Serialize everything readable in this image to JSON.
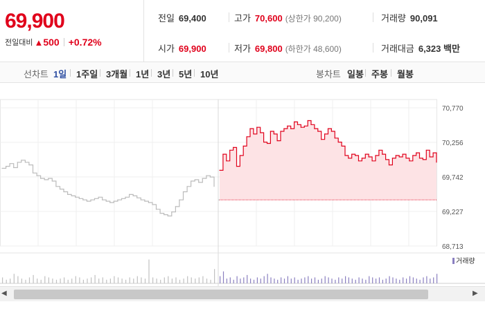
{
  "quote": {
    "price": "69,900",
    "change_label": "전일대비",
    "change_arrow": "▲",
    "change_amount": "500",
    "change_rate": "+0.72%",
    "prev_close": {
      "label": "전일",
      "value": "69,400"
    },
    "high": {
      "label": "고가",
      "value": "70,600",
      "sub": "(상한가 90,200)"
    },
    "volume": {
      "label": "거래량",
      "value": "90,091"
    },
    "open": {
      "label": "시가",
      "value": "69,900"
    },
    "low": {
      "label": "저가",
      "value": "69,800",
      "sub": "(하한가 48,600)"
    },
    "trade_value": {
      "label": "거래대금",
      "value": "6,323 백만"
    }
  },
  "line_tabs": {
    "title": "선차트",
    "items": [
      "1일",
      "1주일",
      "3개월",
      "1년",
      "3년",
      "5년",
      "10년"
    ],
    "active": "1일"
  },
  "candle_tabs": {
    "title": "봉차트",
    "items": [
      "일봉",
      "주봉",
      "월봉"
    ]
  },
  "colors": {
    "up": "#e0001b",
    "prev_line": "#bbbbbb",
    "fill": "#fde3e5",
    "volume_prev": "#c0c0c0",
    "volume_today": "#8a7fc0"
  },
  "scroll_icons": {
    "left": "◀",
    "right": "▶"
  },
  "chart_data": {
    "type": "line",
    "y_ticks": [
      "70,770",
      "70,256",
      "69,742",
      "69,227",
      "68,713"
    ],
    "ylim": [
      68713,
      70770
    ],
    "reference_price": 69400,
    "volume_legend": "거래량",
    "series": [
      {
        "values": [
          69870,
          69900,
          69940,
          69880,
          69960,
          69990,
          69960,
          69920,
          69800,
          69760,
          69720,
          69700,
          69720,
          69680,
          69600,
          69560,
          69520,
          69480,
          69460,
          69440,
          69420,
          69400,
          69380,
          69400,
          69420,
          69440,
          69400,
          69380,
          69360,
          69380,
          69400,
          69420,
          69440,
          69480,
          69460,
          69430,
          69400,
          69380,
          69360,
          69330,
          69260,
          69200,
          69180,
          69160,
          69220,
          69300,
          69400,
          69520,
          69600,
          69680,
          69700,
          69660,
          69720,
          69760,
          69740,
          69600
        ]
      },
      {
        "values": [
          69840,
          70080,
          69980,
          70140,
          70180,
          69900,
          70060,
          70200,
          70340,
          70460,
          70380,
          70480,
          70400,
          70260,
          70240,
          70420,
          70380,
          70280,
          70420,
          70460,
          70500,
          70460,
          70560,
          70520,
          70480,
          70500,
          70580,
          70520,
          70460,
          70420,
          70300,
          70380,
          70460,
          70420,
          70320,
          70260,
          70200,
          70060,
          70020,
          70080,
          70060,
          69980,
          70020,
          70080,
          70040,
          69980,
          70060,
          70140,
          70080,
          70000,
          69920,
          70020,
          70060,
          70040,
          70080,
          70020,
          69980,
          70060,
          70100,
          70020,
          70000,
          70140,
          70040,
          70100,
          69960
        ]
      }
    ],
    "volume": [
      [
        5,
        3,
        4,
        8,
        6,
        4,
        3,
        5,
        7,
        4,
        3,
        6,
        5,
        4,
        3,
        4,
        5,
        3,
        4,
        6,
        5,
        3,
        4,
        5,
        7,
        4,
        5,
        3,
        4,
        6,
        5,
        4,
        3,
        5,
        4,
        6,
        5,
        4,
        20,
        5,
        4,
        3,
        5,
        6,
        4,
        5,
        3,
        4,
        6,
        5,
        4,
        5,
        6,
        4,
        3,
        12
      ],
      [
        6,
        10,
        4,
        5,
        3,
        6,
        4,
        5,
        7,
        4,
        3,
        5,
        4,
        6,
        8,
        5,
        4,
        3,
        5,
        4,
        6,
        4,
        5,
        3,
        4,
        5,
        6,
        4,
        5,
        3,
        4,
        6,
        5,
        4,
        3,
        5,
        4,
        6,
        5,
        4,
        3,
        5,
        4,
        3,
        6,
        5,
        4,
        5,
        3,
        4,
        6,
        5,
        4,
        3,
        5,
        4,
        6,
        5,
        4,
        3,
        5,
        6,
        4,
        5,
        8
      ]
    ]
  }
}
